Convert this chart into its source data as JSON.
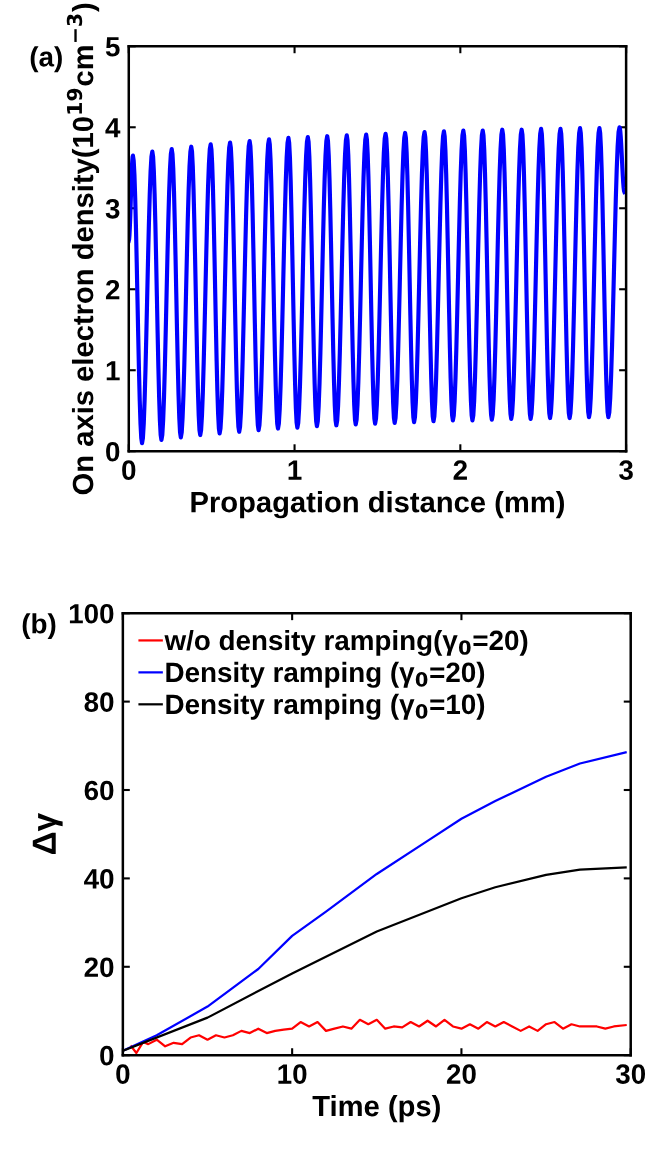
{
  "chart_data": [
    {
      "type": "line",
      "xlabel": "Propagation distance (mm)",
      "ylabel": "On axis electron density(10$^{19}$cm$^{−3}$)",
      "annotations": [
        "(a)"
      ],
      "xlim": [
        0,
        3
      ],
      "ylim": [
        0,
        5
      ],
      "xticks": [
        0,
        1,
        2,
        3
      ],
      "yticks": [
        0,
        1,
        2,
        3,
        4,
        5
      ],
      "grid": false,
      "legend": false,
      "series": [
        {
          "color": "#0000ff",
          "x": [
            0,
            0.025,
            0.08,
            0.142,
            0.197,
            0.259,
            0.314,
            0.377,
            0.431,
            0.494,
            0.548,
            0.611,
            0.666,
            0.729,
            0.783,
            0.846,
            0.9,
            0.963,
            1.017,
            1.08,
            1.135,
            1.197,
            1.252,
            1.315,
            1.369,
            1.432,
            1.486,
            1.549,
            1.604,
            1.667,
            1.721,
            1.784,
            1.838,
            1.901,
            1.955,
            2.018,
            2.073,
            2.135,
            2.19,
            2.253,
            2.307,
            2.37,
            2.424,
            2.487,
            2.541,
            2.604,
            2.659,
            2.722,
            2.776,
            2.839,
            2.893,
            2.96,
            2.99
          ],
          "values": [
            2.6,
            3.65,
            0.1,
            3.7,
            0.14,
            3.73,
            0.17,
            3.76,
            0.2,
            3.79,
            0.22,
            3.81,
            0.24,
            3.83,
            0.26,
            3.85,
            0.28,
            3.87,
            0.29,
            3.88,
            0.31,
            3.89,
            0.32,
            3.9,
            0.33,
            3.91,
            0.34,
            3.92,
            0.35,
            3.93,
            0.36,
            3.94,
            0.37,
            3.95,
            0.38,
            3.96,
            0.38,
            3.96,
            0.39,
            3.97,
            0.4,
            3.97,
            0.4,
            3.98,
            0.41,
            3.98,
            0.41,
            3.99,
            0.42,
            3.99,
            0.42,
            4.0,
            3.2
          ]
        }
      ]
    },
    {
      "type": "line",
      "xlabel": "Time (ps)",
      "ylabel": "Δγ",
      "annotations": [
        "(b)"
      ],
      "xlim": [
        0,
        30
      ],
      "ylim": [
        0,
        100
      ],
      "xticks": [
        0,
        10,
        20,
        30
      ],
      "yticks": [
        0,
        20,
        40,
        60,
        80,
        100
      ],
      "grid": false,
      "legend": "top left",
      "series": [
        {
          "name": "w/o density ramping(γ$_{0}$=20)",
          "color": "#ff0000",
          "x": [
            0.5,
            0.8,
            1.2,
            1.5,
            2,
            2.5,
            3,
            3.5,
            4,
            4.5,
            5,
            5.5,
            6,
            6.5,
            7,
            7.5,
            8,
            8.5,
            9,
            9.5,
            10,
            10.5,
            11,
            11.5,
            12,
            12.5,
            13,
            13.5,
            14,
            14.5,
            15,
            15.5,
            16,
            16.5,
            17,
            17.5,
            18,
            18.5,
            19,
            19.5,
            20,
            20.5,
            21,
            21.5,
            22,
            22.5,
            23,
            23.5,
            24,
            24.5,
            25,
            25.5,
            26,
            26.5,
            27,
            28,
            28.5,
            29,
            29.7
          ],
          "values": [
            2,
            0.5,
            3,
            2.5,
            3.5,
            2,
            2.8,
            2.5,
            4,
            4.5,
            3.5,
            4.5,
            4,
            4.5,
            5.5,
            5,
            6,
            5,
            5.5,
            5.8,
            6,
            7.5,
            6.5,
            7.5,
            5.5,
            6,
            6.5,
            6,
            8,
            7,
            8,
            6,
            6.5,
            6.3,
            7.5,
            6.5,
            7.8,
            6.5,
            8,
            6.5,
            6,
            7,
            6,
            7.5,
            6.5,
            7.5,
            6.5,
            5.5,
            6.5,
            5.5,
            7,
            7.5,
            6,
            7,
            6.5,
            6.5,
            6,
            6.5,
            6.8
          ]
        },
        {
          "name": "Density ramping (γ$_{0}$=20)",
          "color": "#0000ff",
          "x": [
            0,
            2,
            5,
            8,
            10,
            12,
            15,
            18,
            20,
            22,
            25,
            27,
            29.7
          ],
          "values": [
            1,
            4.5,
            11,
            19.5,
            27,
            32.5,
            41,
            48.5,
            53.5,
            57.5,
            63,
            66,
            68.5
          ]
        },
        {
          "name": "Density ramping (γ$_{0}$=10)",
          "color": "#000000",
          "x": [
            0,
            5,
            10,
            15,
            20,
            22,
            25,
            27,
            29.7
          ],
          "values": [
            1,
            8.5,
            18.5,
            28,
            35.5,
            38,
            40.8,
            42,
            42.5
          ]
        }
      ]
    }
  ]
}
